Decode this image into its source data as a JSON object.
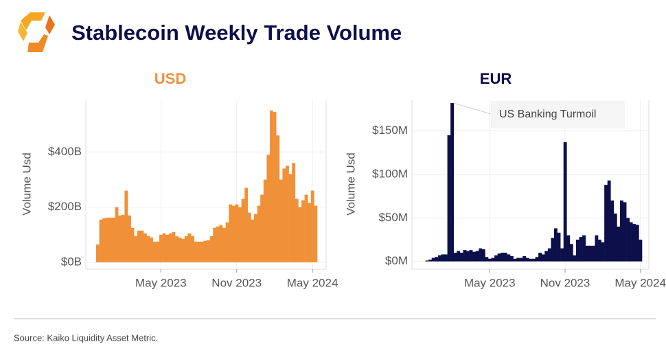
{
  "title": "Stablecoin Weekly Trade Volume",
  "source": "Source: Kaiko Liquidity Asset Metric.",
  "chart_data": [
    {
      "type": "bar",
      "title": "USD",
      "y_label": "Volume Usd",
      "color": "#f0913a",
      "grid": true,
      "categories": [
        null,
        null,
        null,
        null,
        null,
        null,
        null,
        null,
        null,
        null,
        null,
        null,
        null,
        null,
        null,
        null,
        null,
        null,
        null,
        null,
        "May 2023",
        null,
        null,
        null,
        null,
        null,
        null,
        null,
        null,
        null,
        null,
        null,
        null,
        null,
        null,
        null,
        null,
        null,
        null,
        null,
        null,
        null,
        null,
        null,
        "Nov 2023",
        null,
        null,
        null,
        null,
        null,
        null,
        null,
        null,
        null,
        null,
        null,
        null,
        null,
        null,
        null,
        null,
        null,
        null,
        null,
        null,
        null,
        null,
        null,
        "May 2024",
        null
      ],
      "values": [
        65,
        155,
        160,
        162,
        162,
        162,
        200,
        170,
        172,
        260,
        170,
        125,
        95,
        115,
        115,
        105,
        95,
        90,
        75,
        75,
        100,
        105,
        100,
        105,
        110,
        95,
        90,
        85,
        95,
        105,
        95,
        75,
        75,
        75,
        78,
        80,
        95,
        125,
        130,
        135,
        125,
        145,
        210,
        205,
        210,
        200,
        230,
        270,
        180,
        155,
        175,
        205,
        245,
        300,
        390,
        550,
        545,
        460,
        300,
        340,
        350,
        320,
        360,
        230,
        200,
        225,
        245,
        215,
        260,
        205
      ],
      "ylim": [
        -25,
        590
      ],
      "yticks": [
        {
          "value": 0,
          "label": "$0B"
        },
        {
          "value": 200,
          "label": "$200B"
        },
        {
          "value": 400,
          "label": "$400B"
        }
      ]
    },
    {
      "type": "bar",
      "title": "EUR",
      "y_label": "Volume Usd",
      "color": "#0d0f4a",
      "grid": true,
      "annotation": "US Banking Turmoil",
      "categories": [
        null,
        null,
        null,
        null,
        null,
        null,
        null,
        null,
        null,
        null,
        null,
        null,
        null,
        null,
        null,
        null,
        null,
        null,
        null,
        null,
        null,
        "May 2023",
        null,
        null,
        null,
        null,
        null,
        null,
        null,
        null,
        null,
        null,
        null,
        null,
        null,
        null,
        null,
        null,
        null,
        null,
        null,
        null,
        null,
        null,
        null,
        "Nov 2023",
        null,
        null,
        null,
        null,
        null,
        null,
        null,
        null,
        null,
        null,
        null,
        null,
        null,
        null,
        null,
        null,
        null,
        null,
        null,
        null,
        null,
        null,
        null,
        "May 2024"
      ],
      "values": [
        0,
        1,
        2,
        4,
        5,
        7,
        8,
        8,
        145,
        182,
        10,
        12,
        10,
        13,
        12,
        13,
        11,
        12,
        15,
        14,
        5,
        3,
        4,
        7,
        9,
        10,
        10,
        8,
        6,
        3,
        4,
        4,
        6,
        4,
        3,
        3,
        5,
        10,
        8,
        12,
        15,
        27,
        38,
        33,
        15,
        137,
        30,
        20,
        7,
        25,
        28,
        30,
        18,
        18,
        18,
        30,
        25,
        22,
        88,
        93,
        70,
        55,
        40,
        70,
        68,
        50,
        45,
        43,
        42,
        25
      ],
      "ylim": [
        -9,
        186
      ],
      "yticks": [
        {
          "value": 0,
          "label": "$0M"
        },
        {
          "value": 50,
          "label": "$50M"
        },
        {
          "value": 100,
          "label": "$100M"
        },
        {
          "value": 150,
          "label": "$150M"
        }
      ]
    }
  ]
}
